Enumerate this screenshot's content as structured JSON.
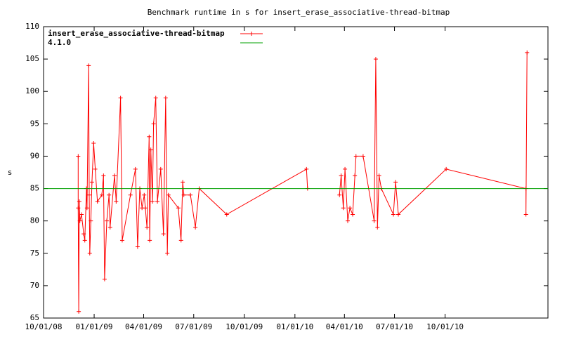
{
  "chart_data": {
    "type": "line",
    "title": "Benchmark runtime in s for insert_erase_associative-thread-bitmap",
    "y_label": "s",
    "xlim": [
      "2008-10-01",
      "2011-04-06"
    ],
    "xticks": [
      {
        "value": "2008-10-01",
        "label": "10/01/08"
      },
      {
        "value": "2009-01-01",
        "label": "01/01/09"
      },
      {
        "value": "2009-04-01",
        "label": "04/01/09"
      },
      {
        "value": "2009-07-01",
        "label": "07/01/09"
      },
      {
        "value": "2009-10-01",
        "label": "10/01/09"
      },
      {
        "value": "2010-01-01",
        "label": "01/01/10"
      },
      {
        "value": "2010-04-01",
        "label": "04/01/10"
      },
      {
        "value": "2010-07-01",
        "label": "07/01/10"
      },
      {
        "value": "2010-10-01",
        "label": "10/01/10"
      }
    ],
    "ylim": [
      65,
      110
    ],
    "yticks": [
      65,
      70,
      75,
      80,
      85,
      90,
      95,
      100,
      105,
      110
    ],
    "legend": "top-left",
    "series": [
      {
        "name": "insert_erase_associative-thread-bitmap",
        "color": "#ff0000",
        "markers": true,
        "x": [
          "2008-12-03",
          "2008-12-03",
          "2008-12-04",
          "2008-12-05",
          "2008-12-06",
          "2008-12-09",
          "2008-12-13",
          "2008-12-15",
          "2008-12-18",
          "2008-12-19",
          "2008-12-22",
          "2008-12-23",
          "2008-12-24",
          "2008-12-26",
          "2008-12-28",
          "2008-12-31",
          "2009-01-03",
          "2009-01-07",
          "2009-01-15",
          "2009-01-18",
          "2009-01-20",
          "2009-01-24",
          "2009-01-28",
          "2009-01-30",
          "2009-02-07",
          "2009-02-10",
          "2009-02-18",
          "2009-02-21",
          "2009-03-08",
          "2009-03-17",
          "2009-03-21",
          "2009-03-25",
          "2009-03-29",
          "2009-04-02",
          "2009-04-04",
          "2009-04-07",
          "2009-04-11",
          "2009-04-12",
          "2009-04-14",
          "2009-04-17",
          "2009-04-19",
          "2009-04-23",
          "2009-04-26",
          "2009-05-02",
          "2009-05-07",
          "2009-05-11",
          "2009-05-14",
          "2009-05-16",
          "2009-06-03",
          "2009-06-08",
          "2009-06-11",
          "2009-06-13",
          "2009-06-25",
          "2009-07-04",
          "2009-07-11",
          "2009-08-30",
          "2010-01-22",
          "2010-01-24",
          "2010-02-15",
          "2010-03-23",
          "2010-03-26",
          "2010-03-30",
          "2010-04-02",
          "2010-04-07",
          "2010-04-11",
          "2010-04-16",
          "2010-04-20",
          "2010-04-22",
          "2010-05-05",
          "2010-05-25",
          "2010-05-28",
          "2010-05-31",
          "2010-06-03",
          "2010-06-07",
          "2010-06-29",
          "2010-07-03",
          "2010-07-08",
          "2010-10-03",
          "2011-02-25",
          "2011-02-25",
          "2011-02-27"
        ],
        "values": [
          90,
          82,
          66,
          83,
          80,
          81,
          78,
          77,
          85,
          82,
          104,
          84,
          75,
          80,
          86,
          92,
          88,
          83,
          84,
          87,
          71,
          80,
          84,
          79,
          87,
          83,
          99,
          77,
          84,
          88,
          76,
          85,
          82,
          84,
          82,
          79,
          93,
          77,
          91,
          83,
          95,
          99,
          83,
          88,
          78,
          99,
          75,
          84,
          82,
          77,
          86,
          84,
          84,
          79,
          85,
          81,
          88,
          85,
          null,
          84,
          87,
          82,
          88,
          80,
          82,
          81,
          87,
          90,
          90,
          80,
          105,
          79,
          87,
          85,
          81,
          86,
          81,
          88,
          85,
          81,
          106
        ]
      },
      {
        "name": "4.1.0",
        "color": "#00a000",
        "markers": false,
        "x": [
          "2008-10-01",
          "2011-04-06"
        ],
        "values": [
          85,
          85
        ]
      }
    ]
  }
}
